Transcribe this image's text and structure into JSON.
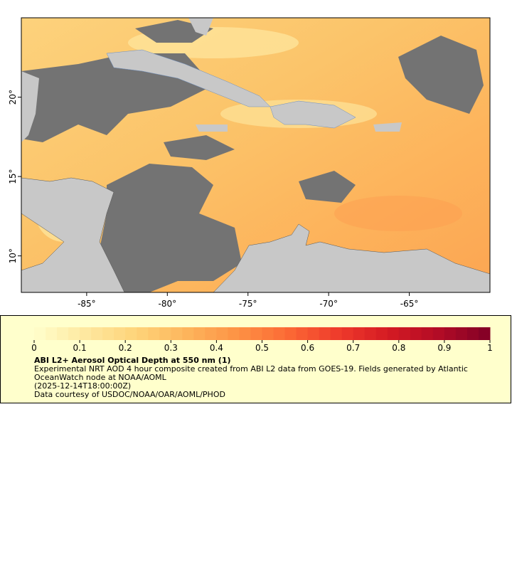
{
  "map": {
    "xlim": [
      -89.05,
      -60
    ],
    "ylim": [
      7.7,
      25
    ],
    "xticks": [
      {
        "value": -85,
        "label": "-85°"
      },
      {
        "value": -80,
        "label": "-80°"
      },
      {
        "value": -75,
        "label": "-75°"
      },
      {
        "value": -70,
        "label": "-70°"
      },
      {
        "value": -65,
        "label": "-65°"
      }
    ],
    "yticks": [
      {
        "value": 10,
        "label": "10°"
      },
      {
        "value": 15,
        "label": "15°"
      },
      {
        "value": 20,
        "label": "20°"
      }
    ]
  },
  "colorbar": {
    "range": [
      0,
      1
    ],
    "ticks": [
      0,
      0.1,
      0.2,
      0.3,
      0.4,
      0.5,
      0.6,
      0.7,
      0.8,
      0.9,
      1
    ],
    "colors": [
      "#ffffcc",
      "#fee8a0",
      "#fed47a",
      "#fdb55c",
      "#fd9345",
      "#fc6a35",
      "#ef3b2c",
      "#d41a23",
      "#b20c26",
      "#800026"
    ],
    "title": "ABI L2+ Aerosol Optical Depth at 550 nm (1)",
    "lines": [
      "Experimental NRT AOD 4 hour composite created from ABI L2 data from GOES-19. Fields generated by Atlantic",
      "OceanWatch node at NOAA/AOML",
      "(2025-12-14T18:00:00Z)",
      "Data courtesy of USDOC/NOAA/OAR/AOML/PHOD"
    ]
  }
}
